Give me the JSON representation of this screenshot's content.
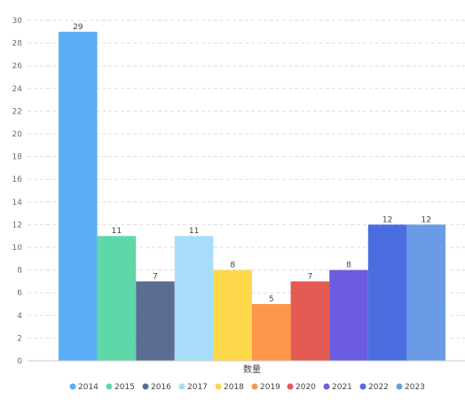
{
  "chart_data": {
    "type": "bar",
    "categories": [
      "数量"
    ],
    "series": [
      {
        "name": "2014",
        "values": [
          29
        ],
        "color": "#5aaef5"
      },
      {
        "name": "2015",
        "values": [
          11
        ],
        "color": "#5fd8a9"
      },
      {
        "name": "2016",
        "values": [
          7
        ],
        "color": "#5b6e92"
      },
      {
        "name": "2017",
        "values": [
          11
        ],
        "color": "#a8ddf9"
      },
      {
        "name": "2018",
        "values": [
          8
        ],
        "color": "#fdd94b"
      },
      {
        "name": "2019",
        "values": [
          5
        ],
        "color": "#fd964b"
      },
      {
        "name": "2020",
        "values": [
          7
        ],
        "color": "#e35a53"
      },
      {
        "name": "2021",
        "values": [
          8
        ],
        "color": "#6b5ce0"
      },
      {
        "name": "2022",
        "values": [
          12
        ],
        "color": "#4a6ee0"
      },
      {
        "name": "2023",
        "values": [
          12
        ],
        "color": "#6a9be6"
      }
    ],
    "ylim": [
      0,
      30
    ],
    "yticks": [
      0,
      2,
      4,
      6,
      8,
      10,
      12,
      14,
      16,
      18,
      20,
      22,
      24,
      26,
      28,
      30
    ],
    "ytick_labels": [
      "0",
      "2",
      "4",
      "6",
      "8",
      "10",
      "12",
      "14",
      "16",
      "18",
      "20",
      "22",
      "24",
      "26",
      "28",
      "30"
    ],
    "data_labels": [
      "29",
      "11",
      "7",
      "11",
      "8",
      "5",
      "7",
      "8",
      "12",
      "12"
    ],
    "grid": true,
    "legend_position": "bottom"
  }
}
